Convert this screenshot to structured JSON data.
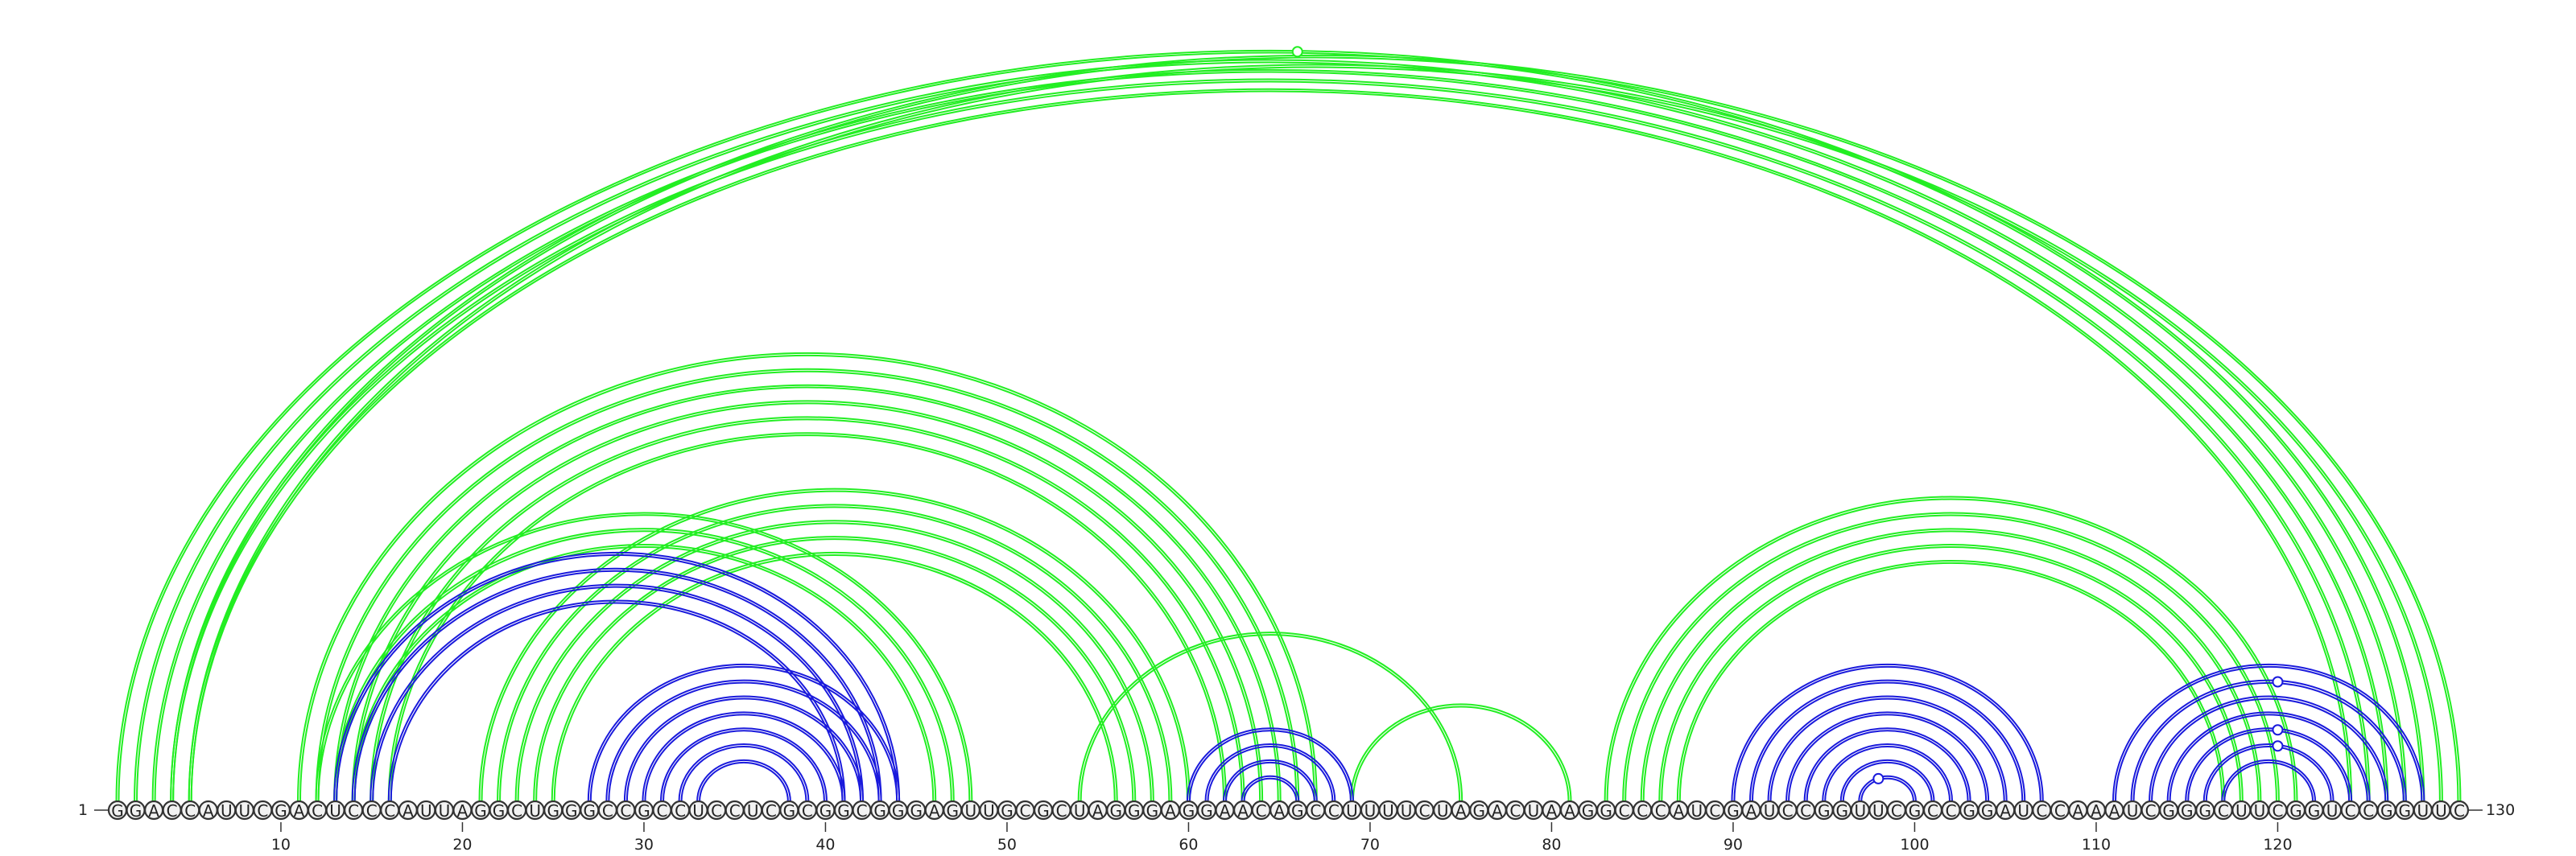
{
  "sequence": "GGACCAUUCGACUCCCAUUAGGCUGGGCCGCCUCCUCGCGGCGGGAGUUGCGCUAGGGAGGAACAGCCUUUUCUAGACUAAGGCCCAUCGAUCCGGUUCGCCGGAUCCAAAUCGGGCUUCGGUCCGGUUC",
  "start_label": "1",
  "end_label": "130",
  "tick_labels": [
    "10",
    "20",
    "30",
    "40",
    "50",
    "60",
    "70",
    "80",
    "90",
    "100",
    "110",
    "120"
  ],
  "tick_positions": [
    10,
    20,
    30,
    40,
    50,
    60,
    70,
    80,
    90,
    100,
    110,
    120
  ],
  "colors": {
    "green": "#22ee22",
    "blue": "#1a1adc",
    "nucleotide_fill": "#f2f2f2",
    "nucleotide_stroke": "#333333"
  },
  "arc_groups": [
    {
      "name": "outer-long-range",
      "color": "green",
      "pairs": [
        [
          1,
          128
        ],
        [
          2,
          127
        ],
        [
          3,
          126
        ],
        [
          4,
          125
        ],
        [
          5,
          124
        ]
      ]
    },
    {
      "name": "long-range-thin",
      "color": "green",
      "pairs": [
        [
          4,
          130
        ],
        [
          5,
          129
        ]
      ]
    },
    {
      "name": "left-upper-stem",
      "color": "green",
      "pairs": [
        [
          11,
          67
        ],
        [
          12,
          66
        ],
        [
          13,
          65
        ],
        [
          14,
          64
        ],
        [
          15,
          63
        ],
        [
          16,
          62
        ]
      ]
    },
    {
      "name": "left-inner-long",
      "color": "green",
      "pairs": [
        [
          21,
          60
        ],
        [
          22,
          59
        ],
        [
          23,
          58
        ],
        [
          24,
          57
        ],
        [
          25,
          56
        ]
      ]
    },
    {
      "name": "left-mid",
      "color": "green",
      "pairs": [
        [
          12,
          48
        ],
        [
          13,
          47
        ],
        [
          14,
          46
        ]
      ]
    },
    {
      "name": "blue-left-outer",
      "color": "blue",
      "pairs": [
        [
          13,
          44
        ],
        [
          14,
          43
        ],
        [
          15,
          42
        ],
        [
          16,
          41
        ]
      ]
    },
    {
      "name": "blue-left-hairpin",
      "color": "blue",
      "pairs": [
        [
          27,
          44
        ],
        [
          28,
          43
        ],
        [
          29,
          42
        ],
        [
          30,
          41
        ],
        [
          31,
          40
        ],
        [
          32,
          39
        ],
        [
          33,
          38
        ]
      ]
    },
    {
      "name": "middle-green",
      "color": "green",
      "pairs": [
        [
          54,
          75
        ],
        [
          69,
          81
        ]
      ]
    },
    {
      "name": "blue-middle",
      "color": "blue",
      "pairs": [
        [
          60,
          69
        ],
        [
          61,
          68
        ],
        [
          62,
          67
        ],
        [
          63,
          66
        ]
      ]
    },
    {
      "name": "right-green",
      "color": "green",
      "pairs": [
        [
          83,
          121
        ],
        [
          84,
          120
        ],
        [
          85,
          119
        ],
        [
          86,
          118
        ],
        [
          87,
          117
        ]
      ]
    },
    {
      "name": "blue-right-hairpin",
      "color": "blue",
      "pairs": [
        [
          90,
          107
        ],
        [
          91,
          106
        ],
        [
          92,
          105
        ],
        [
          93,
          104
        ],
        [
          94,
          103
        ],
        [
          95,
          102
        ],
        [
          96,
          101
        ],
        [
          97,
          100
        ]
      ]
    },
    {
      "name": "blue-far-right",
      "color": "blue",
      "pairs": [
        [
          111,
          128
        ],
        [
          112,
          127
        ],
        [
          113,
          126
        ],
        [
          114,
          125
        ],
        [
          115,
          124
        ],
        [
          116,
          123
        ],
        [
          117,
          122
        ]
      ]
    }
  ],
  "markers": [
    {
      "between": [
        1,
        128
      ],
      "color": "green",
      "nucleotide": 66
    },
    {
      "between": [
        97,
        100
      ],
      "color": "blue",
      "nucleotide": 98
    },
    {
      "between": [
        116,
        123
      ],
      "color": "blue",
      "nucleotide": 120
    },
    {
      "between": [
        115,
        124
      ],
      "color": "blue",
      "nucleotide": 120
    },
    {
      "between": [
        112,
        127
      ],
      "color": "blue",
      "nucleotide": 120
    }
  ]
}
